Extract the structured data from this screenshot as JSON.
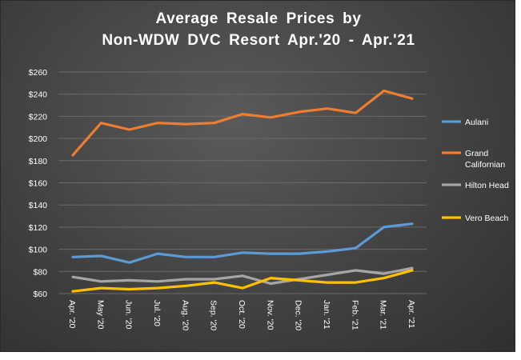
{
  "colors": {
    "aulani": "#5b9bd5",
    "grand_californian": "#ed7d31",
    "hilton_head": "#a5a5a5",
    "vero_beach": "#ffc000",
    "gridline": "#6a6a6a",
    "axis_text": "#ffffff"
  },
  "chart_data": {
    "type": "line",
    "title_line1": "Average Resale Prices by",
    "title_line2": "Non-WDW DVC Resort Apr.'20 - Apr.'21",
    "categories": [
      "Apr. '20",
      "May '20",
      "Jun. '20",
      "Jul. '20",
      "Aug. '20",
      "Sep. '20",
      "Oct. '20",
      "Nov. '20",
      "Dec. '20",
      "Jan. '21",
      "Feb. '21",
      "Mar. '21",
      "Apr. '21"
    ],
    "ylim": [
      60,
      260
    ],
    "yticks": [
      "$60",
      "$80",
      "$100",
      "$120",
      "$140",
      "$160",
      "$180",
      "$200",
      "$220",
      "$240",
      "$260"
    ],
    "grid": true,
    "legend_position": "right",
    "series": [
      {
        "name": "Aulani",
        "color": "#5b9bd5",
        "values": [
          93,
          94,
          88,
          96,
          93,
          93,
          97,
          96,
          96,
          98,
          101,
          120,
          123
        ]
      },
      {
        "name": "Grand Californian",
        "color": "#ed7d31",
        "values": [
          185,
          214,
          208,
          214,
          213,
          214,
          222,
          219,
          224,
          227,
          223,
          243,
          236
        ]
      },
      {
        "name": "Hilton Head",
        "color": "#a5a5a5",
        "values": [
          75,
          71,
          72,
          71,
          73,
          73,
          76,
          69,
          73,
          77,
          81,
          78,
          83
        ]
      },
      {
        "name": "Vero Beach",
        "color": "#ffc000",
        "values": [
          62,
          65,
          64,
          65,
          67,
          70,
          65,
          74,
          72,
          70,
          70,
          74,
          81
        ]
      }
    ]
  }
}
